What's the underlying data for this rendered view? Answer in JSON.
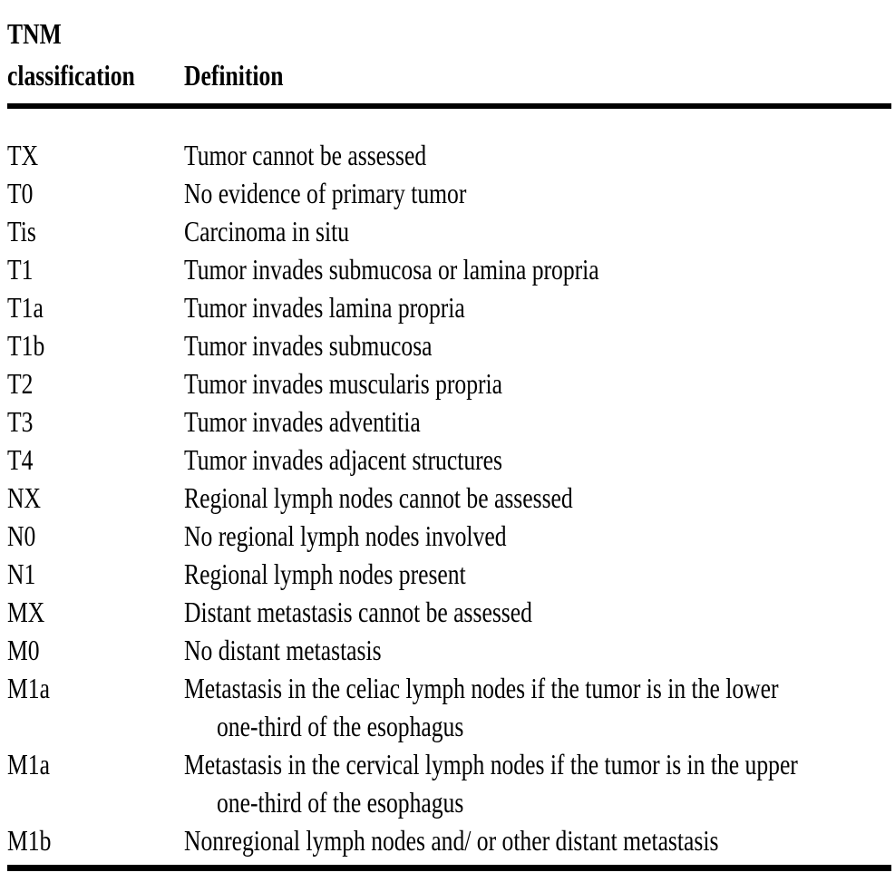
{
  "page": {
    "background_color": "#ffffff",
    "text_color": "#000000",
    "rule_color": "#000000"
  },
  "table": {
    "header": {
      "col1_lines": [
        "TNM",
        "classification"
      ],
      "col2": "Definition"
    },
    "rows": [
      {
        "code": "TX",
        "lines": [
          "Tumor cannot be assessed"
        ]
      },
      {
        "code": "T0",
        "lines": [
          "No evidence of primary tumor"
        ]
      },
      {
        "code": "Tis",
        "lines": [
          "Carcinoma in situ"
        ]
      },
      {
        "code": "T1",
        "lines": [
          "Tumor invades submucosa or lamina propria"
        ]
      },
      {
        "code": "T1a",
        "lines": [
          "Tumor invades lamina propria"
        ]
      },
      {
        "code": "T1b",
        "lines": [
          "Tumor invades submucosa"
        ]
      },
      {
        "code": "T2",
        "lines": [
          "Tumor invades muscularis propria"
        ]
      },
      {
        "code": "T3",
        "lines": [
          "Tumor invades adventitia"
        ]
      },
      {
        "code": "T4",
        "lines": [
          "Tumor invades adjacent structures"
        ]
      },
      {
        "code": "NX",
        "lines": [
          "Regional lymph nodes cannot be assessed"
        ]
      },
      {
        "code": "N0",
        "lines": [
          "No regional lymph nodes involved"
        ]
      },
      {
        "code": "N1",
        "lines": [
          "Regional lymph nodes present"
        ]
      },
      {
        "code": "MX",
        "lines": [
          "Distant metastasis cannot be assessed"
        ]
      },
      {
        "code": "M0",
        "lines": [
          "No distant metastasis"
        ]
      },
      {
        "code": "M1a",
        "lines": [
          "Metastasis in the celiac lymph nodes if the tumor is in the lower",
          "one-third of the esophagus"
        ]
      },
      {
        "code": "M1a",
        "lines": [
          "Metastasis in the cervical lymph nodes if the tumor is in the upper",
          "one-third of the esophagus"
        ]
      },
      {
        "code": "M1b",
        "lines": [
          "Nonregional lymph nodes and/ or other distant metastasis"
        ]
      }
    ]
  }
}
